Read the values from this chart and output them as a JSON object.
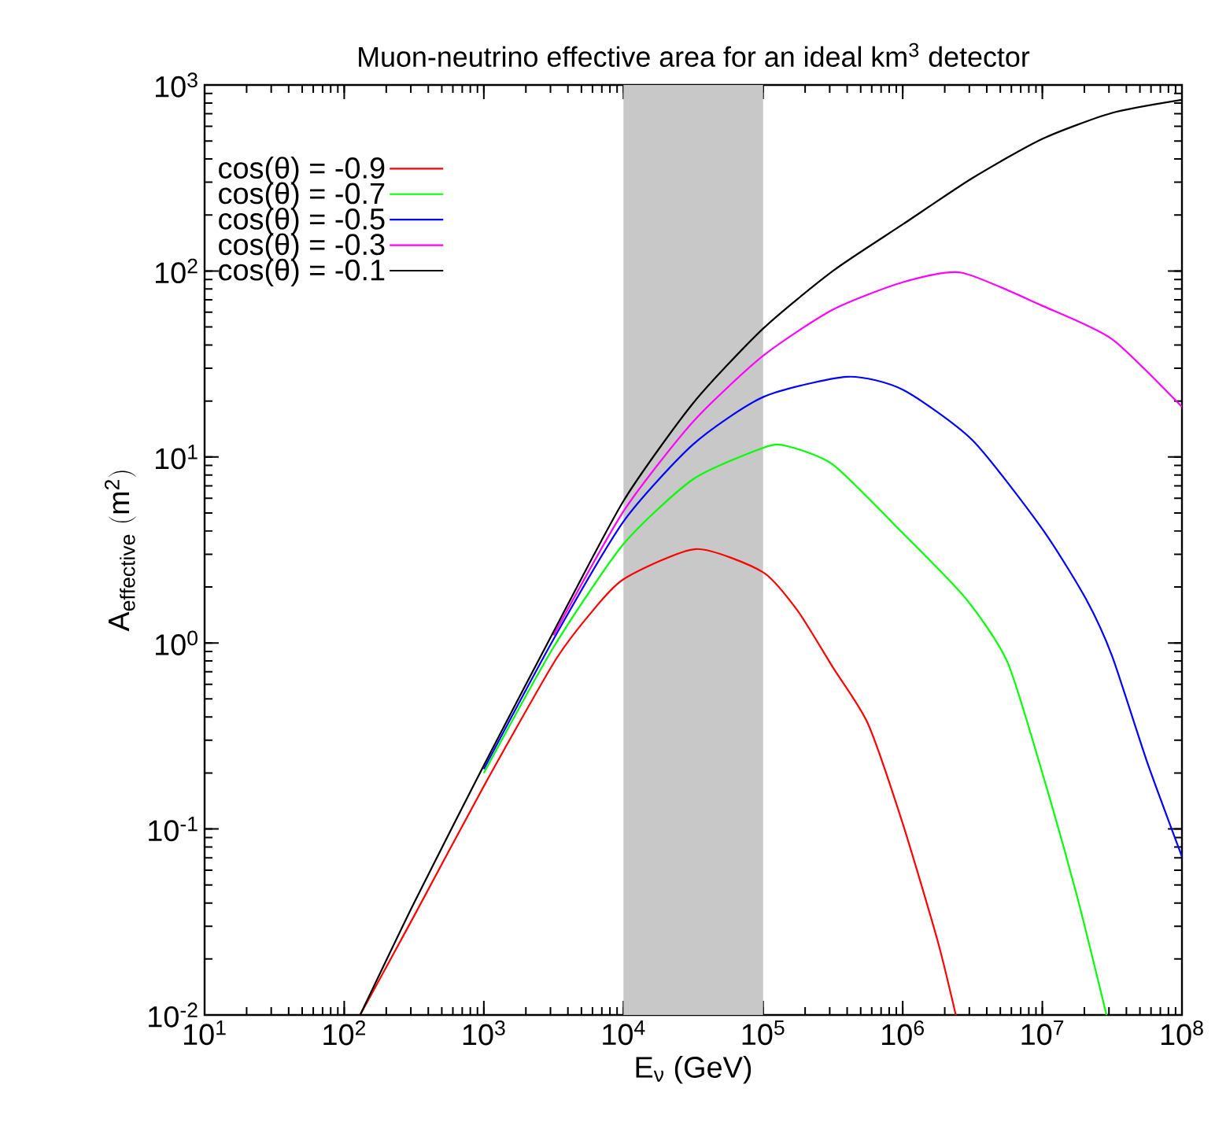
{
  "chart_data": {
    "type": "line",
    "title": "Muon-neutrino effective area for an ideal km$^{3}$ detector",
    "xlabel": "E$_{ν}$ (GeV)",
    "ylabel": "\\mathrm{A_{effective}\\ (m^{2})}",
    "log": "xy",
    "xlim": [
      10,
      100000000
    ],
    "ylim": [
      0.01,
      1000
    ],
    "xticks": [
      {
        "value": 10,
        "label": "10$^{1}$"
      },
      {
        "value": 100,
        "label": "10$^{2}$"
      },
      {
        "value": 1000,
        "label": "10$^{3}$"
      },
      {
        "value": 10000,
        "label": "10$^{4}$"
      },
      {
        "value": 100000,
        "label": "10$^{5}$"
      },
      {
        "value": 1000000,
        "label": "10$^{6}$"
      },
      {
        "value": 10000000,
        "label": "10$^{7}$"
      },
      {
        "value": 100000000,
        "label": "10$^{8}$"
      }
    ],
    "yticks": [
      {
        "value": 0.01,
        "label": "10$^{-2}$"
      },
      {
        "value": 0.1,
        "label": "10$^{-1}$"
      },
      {
        "value": 1,
        "label": "10$^{0}$"
      },
      {
        "value": 10,
        "label": "10$^{1}$"
      },
      {
        "value": 100,
        "label": "10$^{2}$"
      },
      {
        "value": 1000,
        "label": "10$^{3}$"
      }
    ],
    "bands": [
      {
        "axis": "x",
        "from": 10000,
        "to": 100000,
        "color": "#c8c8c8"
      }
    ],
    "legend": "top left",
    "grid": false,
    "marker": "none",
    "line_style": "solid",
    "series": [
      {
        "name": "cos(θ) = -0.9",
        "color": "#ff0000",
        "x": [
          130,
          316,
          1000,
          3160,
          5620,
          10000,
          33000,
          100000,
          178000,
          316000,
          562000,
          1000000,
          1780000,
          2400000
        ],
        "values": [
          0.01,
          0.034,
          0.17,
          0.78,
          1.4,
          2.2,
          3.2,
          2.4,
          1.48,
          0.74,
          0.37,
          0.107,
          0.025,
          0.01
        ]
      },
      {
        "name": "cos(θ) = -0.7",
        "color": "#00ff00",
        "x": [
          1000,
          3160,
          10000,
          31600,
          100000,
          145000,
          316000,
          1000000,
          2820000,
          5620000,
          10000000,
          17800000,
          28800000
        ],
        "values": [
          0.2,
          0.95,
          3.4,
          7.6,
          11.2,
          11.5,
          9.1,
          3.9,
          1.74,
          0.79,
          0.2,
          0.043,
          0.01
        ]
      },
      {
        "name": "cos(θ) = -0.5",
        "color": "#0000ff",
        "x": [
          1000,
          3160,
          10000,
          31600,
          100000,
          400000,
          1000000,
          3160000,
          10000000,
          20400000,
          31600000,
          56200000,
          100000000
        ],
        "values": [
          0.21,
          1.05,
          4.5,
          11.7,
          21,
          27,
          23,
          12.3,
          4.1,
          1.74,
          0.85,
          0.23,
          0.071
        ]
      },
      {
        "name": "cos(θ) = -0.3",
        "color": "#ff00ff",
        "x": [
          3160,
          10000,
          31600,
          100000,
          316000,
          1000000,
          2630000,
          10000000,
          31600000,
          100000000
        ],
        "values": [
          1.1,
          5.1,
          15.5,
          35,
          62,
          87,
          98,
          65,
          43,
          18.6
        ]
      },
      {
        "name": "cos(θ) = -0.1",
        "color": "#000000",
        "x": [
          130,
          316,
          1000,
          3160,
          10000,
          31600,
          100000,
          316000,
          1000000,
          3160000,
          10000000,
          31600000,
          100000000
        ],
        "values": [
          0.01,
          0.04,
          0.22,
          1.15,
          5.8,
          19.5,
          49,
          100,
          178,
          316,
          513,
          708,
          832
        ]
      }
    ]
  }
}
